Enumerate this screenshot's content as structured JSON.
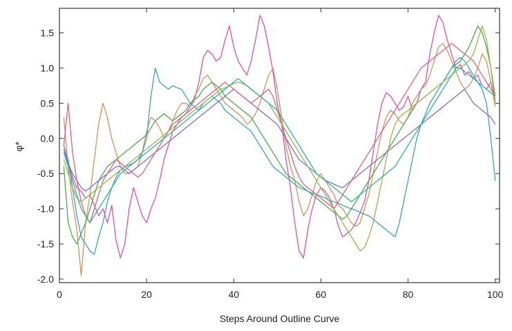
{
  "chart_data": {
    "type": "line",
    "xlabel": "Steps Around Outline Curve",
    "ylabel": "φ*",
    "xlim": [
      0,
      101
    ],
    "ylim": [
      -2.05,
      1.85
    ],
    "xticks": [
      0,
      20,
      40,
      60,
      80,
      100
    ],
    "xtick_labels": [
      "0",
      "20",
      "40",
      "60",
      "80",
      "100"
    ],
    "yticks": [
      -2.0,
      -1.5,
      -1.0,
      -0.5,
      0.0,
      0.5,
      1.0,
      1.5
    ],
    "ytick_labels": [
      "-2.0",
      "-1.5",
      "-1.0",
      "-0.5",
      "0.0",
      "0.5",
      "1.0",
      "1.5"
    ],
    "grid": false,
    "legend": "none",
    "x": [
      1,
      2,
      3,
      4,
      5,
      6,
      7,
      8,
      9,
      10,
      11,
      12,
      13,
      14,
      15,
      16,
      17,
      18,
      19,
      20,
      21,
      22,
      23,
      24,
      25,
      26,
      27,
      28,
      29,
      30,
      31,
      32,
      33,
      34,
      35,
      36,
      37,
      38,
      39,
      40,
      41,
      42,
      43,
      44,
      45,
      46,
      47,
      48,
      49,
      50,
      51,
      52,
      53,
      54,
      55,
      56,
      57,
      58,
      59,
      60,
      61,
      62,
      63,
      64,
      65,
      66,
      67,
      68,
      69,
      70,
      71,
      72,
      73,
      74,
      75,
      76,
      77,
      78,
      79,
      80,
      81,
      82,
      83,
      84,
      85,
      86,
      87,
      88,
      89,
      90,
      91,
      92,
      93,
      94,
      95,
      96,
      97,
      98,
      99,
      100
    ],
    "series": [
      {
        "color": "#d94fb5",
        "values": [
          -0.15,
          -0.35,
          -0.55,
          -0.7,
          -0.75,
          -0.85,
          -0.8,
          -0.95,
          -1.1,
          -1.0,
          -1.2,
          -0.95,
          -1.45,
          -1.7,
          -1.5,
          -1.0,
          -0.7,
          -0.9,
          -1.1,
          -1.2,
          -1.0,
          -0.85,
          -0.6,
          -0.3,
          -0.1,
          0.1,
          0.2,
          0.3,
          0.35,
          0.45,
          0.55,
          0.8,
          1.15,
          1.25,
          1.2,
          1.1,
          1.15,
          1.4,
          1.6,
          1.3,
          1.1,
          1.0,
          0.9,
          1.1,
          1.4,
          1.75,
          1.6,
          1.3,
          0.95,
          0.5,
          0.2,
          -0.3,
          -0.7,
          -1.2,
          -1.6,
          -1.7,
          -1.3,
          -1.0,
          -0.8,
          -0.7,
          -0.75,
          -0.85,
          -1.0,
          -1.25,
          -1.4,
          -1.35,
          -1.3,
          -1.2,
          -1.05,
          -0.9,
          -0.6,
          -0.2,
          0.2,
          0.5,
          0.65,
          0.6,
          0.5,
          0.4,
          0.45,
          0.6,
          0.4,
          0.5,
          0.7,
          0.8,
          1.2,
          1.5,
          1.75,
          1.65,
          1.4,
          1.2,
          1.0,
          1.05,
          0.9,
          0.95,
          0.85,
          0.9,
          0.75,
          0.7,
          0.8,
          0.55
        ]
      },
      {
        "color": "#c9955a",
        "values": [
          0.3,
          -0.4,
          -0.9,
          -1.3,
          -1.95,
          -1.2,
          -0.8,
          -0.3,
          0.2,
          0.5,
          0.3,
          0.0,
          -0.2,
          -0.4,
          -0.5,
          -0.5,
          -0.45,
          -0.4,
          -0.2,
          0.1,
          0.3,
          0.25,
          0.15,
          0.0,
          0.1,
          0.25,
          0.4,
          0.5,
          0.5,
          0.45,
          0.6,
          0.7,
          0.85,
          0.9,
          0.8,
          0.7,
          0.6,
          0.5,
          0.45,
          0.4,
          0.35,
          0.3,
          0.2,
          0.25,
          0.35,
          0.5,
          0.7,
          0.9,
          1.0,
          0.7,
          0.3,
          -0.1,
          -0.4,
          -0.6,
          -0.9,
          -1.1,
          -1.0,
          -0.8,
          -0.6,
          -0.5,
          -0.6,
          -0.7,
          -0.8,
          -0.95,
          -1.0,
          -1.1,
          -1.2,
          -1.25,
          -1.2,
          -1.0,
          -0.8,
          -0.5,
          -0.2,
          0.1,
          0.3,
          0.4,
          0.35,
          0.25,
          0.2,
          0.3,
          0.5,
          0.6,
          0.7,
          0.75,
          0.9,
          1.1,
          1.3,
          1.35,
          1.25,
          1.1,
          0.95,
          0.8,
          0.7,
          0.75,
          0.85,
          1.0,
          1.2,
          1.1,
          0.8,
          0.45
        ]
      },
      {
        "color": "#4aaa4a",
        "values": [
          -0.4,
          -1.2,
          -1.4,
          -1.5,
          -1.35,
          -1.2,
          -1.0,
          -0.8,
          -0.6,
          -0.5,
          -0.4,
          -0.35,
          -0.3,
          -0.25,
          -0.2,
          -0.15,
          -0.1,
          -0.05,
          0.0,
          0.05,
          0.15,
          0.25,
          0.3,
          0.35,
          0.3,
          0.25,
          0.3,
          0.35,
          0.4,
          0.5,
          0.55,
          0.6,
          0.7,
          0.75,
          0.8,
          0.75,
          0.7,
          0.6,
          0.55,
          0.5,
          0.45,
          0.4,
          0.35,
          0.3,
          0.2,
          0.1,
          0.0,
          -0.1,
          -0.2,
          -0.3,
          -0.4,
          -0.5,
          -0.55,
          -0.6,
          -0.65,
          -0.7,
          -0.75,
          -0.8,
          -0.85,
          -0.9,
          -0.95,
          -1.0,
          -1.05,
          -1.1,
          -1.15,
          -1.1,
          -1.0,
          -0.9,
          -0.8,
          -0.7,
          -0.6,
          -0.5,
          -0.4,
          -0.3,
          -0.2,
          -0.1,
          0.0,
          0.1,
          0.2,
          0.3,
          0.4,
          0.5,
          0.55,
          0.6,
          0.65,
          0.7,
          0.75,
          0.8,
          0.9,
          1.0,
          1.05,
          1.1,
          1.2,
          1.3,
          1.45,
          1.6,
          1.5,
          1.3,
          1.0,
          0.6
        ]
      },
      {
        "color": "#3a9fc9",
        "values": [
          -0.1,
          -0.3,
          -0.7,
          -1.1,
          -1.4,
          -1.5,
          -1.6,
          -1.65,
          -1.4,
          -1.2,
          -0.9,
          -0.7,
          -0.55,
          -0.45,
          -0.4,
          -0.38,
          -0.35,
          -0.3,
          -0.2,
          0.0,
          0.6,
          1.0,
          0.8,
          0.75,
          0.7,
          0.75,
          0.72,
          0.7,
          0.6,
          0.5,
          0.45,
          0.4,
          0.5,
          0.55,
          0.6,
          0.55,
          0.5,
          0.4,
          0.35,
          0.3,
          0.25,
          0.2,
          0.15,
          0.1,
          0.0,
          -0.1,
          -0.2,
          -0.3,
          -0.4,
          -0.45,
          -0.5,
          -0.55,
          -0.6,
          -0.65,
          -0.7,
          -0.72,
          -0.75,
          -0.78,
          -0.8,
          -0.82,
          -0.85,
          -0.88,
          -0.9,
          -0.92,
          -0.95,
          -0.98,
          -1.0,
          -1.02,
          -1.05,
          -1.08,
          -1.1,
          -1.15,
          -1.2,
          -1.25,
          -1.3,
          -1.35,
          -1.4,
          -1.2,
          -0.9,
          -0.6,
          -0.3,
          0.0,
          0.2,
          0.35,
          0.5,
          0.6,
          0.7,
          0.8,
          0.9,
          1.0,
          1.1,
          1.15,
          1.1,
          1.0,
          0.9,
          0.8,
          0.7,
          0.5,
          0.0,
          -0.6
        ]
      },
      {
        "color": "#7a6fd0",
        "values": [
          -0.2,
          -0.35,
          -0.5,
          -0.6,
          -0.7,
          -0.75,
          -0.7,
          -0.65,
          -0.6,
          -0.55,
          -0.5,
          -0.45,
          -0.4,
          -0.4,
          -0.45,
          -0.5,
          -0.45,
          -0.4,
          -0.35,
          -0.3,
          -0.25,
          -0.2,
          -0.15,
          -0.1,
          -0.05,
          0.0,
          0.05,
          0.1,
          0.15,
          0.2,
          0.25,
          0.3,
          0.35,
          0.4,
          0.45,
          0.5,
          0.55,
          0.6,
          0.65,
          0.7,
          0.65,
          0.6,
          0.55,
          0.5,
          0.45,
          0.4,
          0.35,
          0.3,
          0.25,
          0.2,
          0.1,
          0.0,
          -0.1,
          -0.2,
          -0.3,
          -0.35,
          -0.4,
          -0.45,
          -0.5,
          -0.55,
          -0.6,
          -0.62,
          -0.65,
          -0.68,
          -0.7,
          -0.65,
          -0.6,
          -0.55,
          -0.5,
          -0.45,
          -0.4,
          -0.35,
          -0.3,
          -0.25,
          -0.2,
          -0.15,
          -0.1,
          -0.05,
          0.0,
          0.05,
          0.1,
          0.15,
          0.2,
          0.25,
          0.3,
          0.35,
          0.4,
          0.45,
          0.5,
          0.55,
          0.6,
          0.65,
          0.7,
          0.6,
          0.5,
          0.45,
          0.4,
          0.35,
          0.3,
          0.2
        ]
      },
      {
        "color": "#e0607a",
        "values": [
          -0.1,
          0.5,
          -0.2,
          -0.6,
          -0.9,
          -1.1,
          -1.2,
          -1.0,
          -0.8,
          -0.6,
          -0.5,
          -0.4,
          -0.3,
          -0.35,
          -0.4,
          -0.45,
          -0.5,
          -0.55,
          -0.5,
          -0.4,
          -0.3,
          -0.2,
          -0.1,
          0.0,
          0.1,
          0.2,
          0.25,
          0.3,
          0.35,
          0.4,
          0.45,
          0.5,
          0.55,
          0.6,
          0.65,
          0.7,
          0.75,
          0.8,
          0.75,
          0.7,
          0.65,
          0.6,
          0.55,
          0.5,
          0.55,
          0.6,
          0.65,
          0.7,
          0.6,
          0.4,
          0.2,
          0.0,
          -0.2,
          -0.4,
          -0.55,
          -0.65,
          -0.7,
          -0.75,
          -0.8,
          -0.85,
          -0.9,
          -0.95,
          -1.0,
          -0.9,
          -0.8,
          -0.7,
          -0.6,
          -0.5,
          -0.4,
          -0.3,
          -0.2,
          -0.1,
          0.0,
          0.1,
          0.2,
          0.3,
          0.4,
          0.5,
          0.6,
          0.7,
          0.8,
          0.9,
          1.0,
          1.05,
          1.1,
          1.15,
          1.2,
          1.25,
          1.3,
          1.35,
          1.3,
          1.25,
          1.2,
          1.15,
          1.1,
          1.0,
          0.9,
          0.8,
          0.7,
          0.6
        ]
      },
      {
        "color": "#9bb34f",
        "values": [
          -0.3,
          -0.5,
          -0.7,
          -0.85,
          -0.9,
          -0.85,
          -0.8,
          -0.75,
          -0.7,
          -0.65,
          -0.6,
          -0.55,
          -0.5,
          -0.45,
          -0.4,
          -0.35,
          -0.3,
          -0.25,
          -0.2,
          -0.15,
          -0.1,
          -0.05,
          0.0,
          0.05,
          0.1,
          0.15,
          0.2,
          0.25,
          0.3,
          0.35,
          0.4,
          0.45,
          0.5,
          0.55,
          0.6,
          0.65,
          0.7,
          0.72,
          0.75,
          0.78,
          0.8,
          0.78,
          0.75,
          0.7,
          0.65,
          0.6,
          0.55,
          0.5,
          0.4,
          0.3,
          0.2,
          0.1,
          0.0,
          -0.1,
          -0.2,
          -0.3,
          -0.4,
          -0.5,
          -0.6,
          -0.7,
          -0.8,
          -0.9,
          -1.0,
          -1.1,
          -1.2,
          -1.3,
          -1.4,
          -1.5,
          -1.6,
          -1.55,
          -1.4,
          -1.2,
          -0.9,
          -0.6,
          -0.3,
          0.0,
          0.2,
          0.3,
          0.35,
          0.4,
          0.45,
          0.5,
          0.55,
          0.6,
          0.65,
          0.7,
          0.75,
          0.8,
          0.85,
          0.9,
          0.95,
          1.0,
          1.05,
          1.1,
          1.2,
          1.4,
          1.6,
          1.4,
          1.0,
          0.5
        ]
      },
      {
        "color": "#2fb39b",
        "values": [
          -0.2,
          -0.4,
          -0.6,
          -0.8,
          -1.0,
          -1.1,
          -1.2,
          -1.1,
          -1.0,
          -0.9,
          -0.8,
          -0.7,
          -0.6,
          -0.5,
          -0.45,
          -0.4,
          -0.35,
          -0.3,
          -0.25,
          -0.2,
          -0.15,
          -0.1,
          -0.05,
          0.0,
          0.05,
          0.1,
          0.15,
          0.2,
          0.25,
          0.3,
          0.35,
          0.4,
          0.45,
          0.5,
          0.55,
          0.6,
          0.65,
          0.7,
          0.75,
          0.8,
          0.85,
          0.8,
          0.75,
          0.7,
          0.65,
          0.6,
          0.55,
          0.5,
          0.45,
          0.4,
          0.3,
          0.2,
          0.1,
          0.0,
          -0.1,
          -0.2,
          -0.3,
          -0.4,
          -0.5,
          -0.55,
          -0.6,
          -0.65,
          -0.7,
          -0.75,
          -0.8,
          -0.85,
          -0.9,
          -0.85,
          -0.8,
          -0.75,
          -0.7,
          -0.65,
          -0.6,
          -0.55,
          -0.5,
          -0.45,
          -0.4,
          -0.3,
          -0.2,
          -0.1,
          0.0,
          0.1,
          0.2,
          0.3,
          0.4,
          0.5,
          0.6,
          0.7,
          0.8,
          0.9,
          1.0,
          1.0,
          0.95,
          0.9,
          0.85,
          0.8,
          0.75,
          0.7,
          0.65,
          0.6
        ]
      }
    ]
  }
}
